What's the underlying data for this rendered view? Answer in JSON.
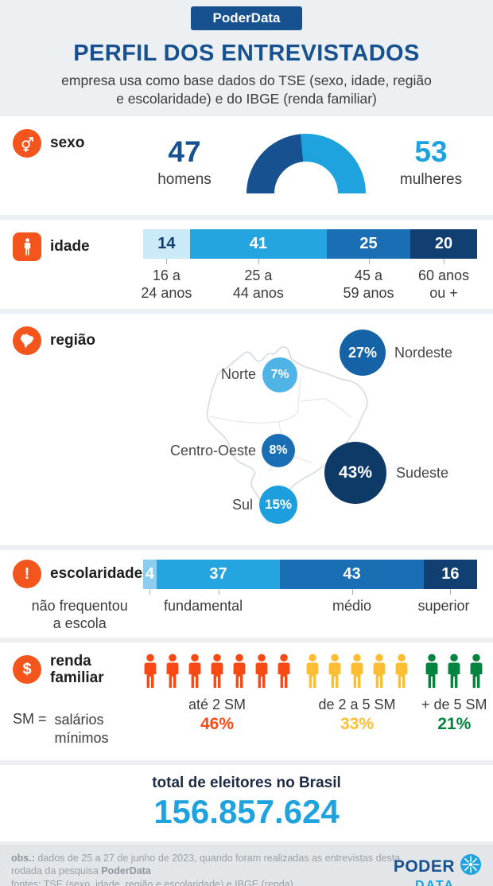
{
  "header": {
    "badge": "PoderData",
    "title": "PERFIL DOS ENTREVISTADOS",
    "subtitle": "empresa usa como base dados do TSE (sexo, idade, região\ne escolaridade) e do IBGE (renda familiar)"
  },
  "colors": {
    "accent_orange": "#f4551c",
    "brand_navy": "#17518f",
    "bright_blue": "#1fa3de",
    "page_bg": "#edf0f3"
  },
  "chart_data": [
    {
      "id": "sexo",
      "type": "donut",
      "section_label": "sexo",
      "series": [
        {
          "label": "homens",
          "value": 47,
          "color": "#17518f"
        },
        {
          "label": "mulheres",
          "value": 53,
          "color": "#1fa3de"
        }
      ]
    },
    {
      "id": "idade",
      "type": "bar",
      "section_label": "idade",
      "unit": "%",
      "segments": [
        {
          "value": 14,
          "label": "16 a\n24 anos",
          "color": "#c9eaf6",
          "text_color": "#123f72"
        },
        {
          "value": 41,
          "label": "25 a\n44 anos",
          "color": "#24a5e0",
          "text_color": "#ffffff"
        },
        {
          "value": 25,
          "label": "45 a\n59 anos",
          "color": "#1a6fb4",
          "text_color": "#ffffff"
        },
        {
          "value": 20,
          "label": "60 anos\nou +",
          "color": "#123f72",
          "text_color": "#ffffff"
        }
      ]
    },
    {
      "id": "regiao",
      "type": "map-bubbles",
      "section_label": "região",
      "regions": [
        {
          "name": "Norte",
          "value": "7%",
          "color": "#4fb4e5"
        },
        {
          "name": "Nordeste",
          "value": "27%",
          "color": "#1563a6"
        },
        {
          "name": "Centro-Oeste",
          "value": "8%",
          "color": "#1a6fb4"
        },
        {
          "name": "Sudeste",
          "value": "43%",
          "color": "#0e3a68"
        },
        {
          "name": "Sul",
          "value": "15%",
          "color": "#1d9fdd"
        }
      ]
    },
    {
      "id": "escolaridade",
      "type": "bar",
      "section_label": "escolaridade",
      "unit": "%",
      "segments": [
        {
          "value": 4,
          "label": "não frequentou\na escola",
          "color": "#8ccdef",
          "text_color": "#ffffff",
          "label_center_pct": -19
        },
        {
          "value": 37,
          "label": "fundamental",
          "color": "#24a5e0",
          "text_color": "#ffffff",
          "label_center_pct": 18
        },
        {
          "value": 43,
          "label": "médio",
          "color": "#1a6fb4",
          "text_color": "#ffffff"
        },
        {
          "value": 16,
          "label": "superior",
          "color": "#123f72",
          "text_color": "#ffffff",
          "label_center_pct": 90
        }
      ]
    },
    {
      "id": "renda",
      "type": "pictogram",
      "section_label": "renda\nfamiliar",
      "legend": "SM =",
      "legend_note": "salários\nmínimos",
      "groups": [
        {
          "label": "até 2 SM",
          "pct": "46%",
          "count": 7,
          "color": "#f94a15"
        },
        {
          "label": "de 2 a 5 SM",
          "pct": "33%",
          "count": 5,
          "color": "#fdbe33"
        },
        {
          "label": "+ de 5 SM",
          "pct": "21%",
          "count": 3,
          "color": "#03843e"
        }
      ]
    }
  ],
  "total": {
    "label": "total de eleitores no Brasil",
    "value": "156.857.624"
  },
  "footer": {
    "obs_label": "obs.:",
    "obs_text": " dados de 25 a 27 de junho de 2023, quando foram realizadas as entrevistas desta\nrodada da pesquisa ",
    "obs_brand": "PoderData",
    "fontes": "fontes: TSE (sexo, idade, região e escolaridade) e IBGE (renda)",
    "logo_top": "PODER",
    "logo_bottom": "DATA"
  }
}
